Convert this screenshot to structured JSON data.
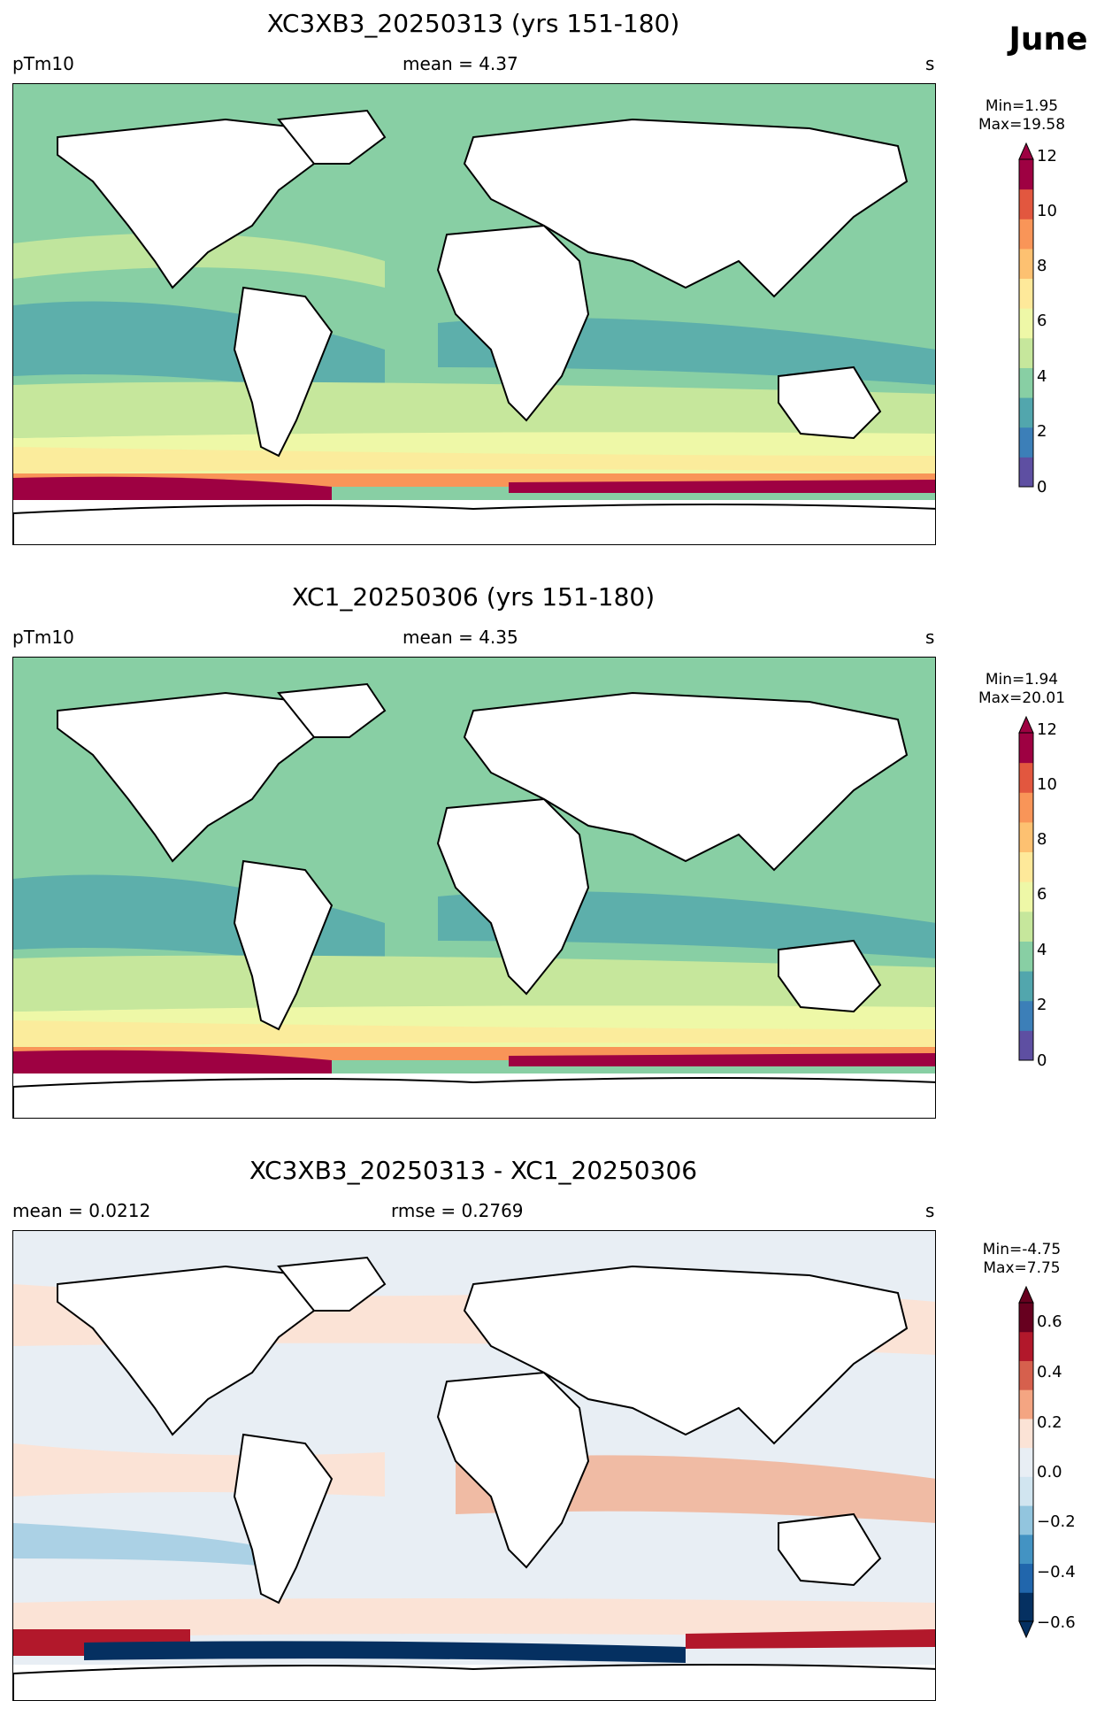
{
  "month": "June",
  "panels": [
    {
      "title": "XC3XB3_20250313 (yrs 151-180)",
      "left_label": "pTm10",
      "center_label": "mean = 4.37",
      "right_label": "s",
      "min_label": "Min=1.95",
      "max_label": "Max=19.58",
      "colorbar": {
        "ticks": [
          "0",
          "2",
          "4",
          "6",
          "8",
          "10",
          "12"
        ],
        "colors": [
          "#5e4fa2",
          "#3c7fb8",
          "#52a6ad",
          "#88cfa4",
          "#c6e79c",
          "#eef8a7",
          "#fee99a",
          "#fdc171",
          "#f99558",
          "#e2573f",
          "#9e0142"
        ]
      }
    },
    {
      "title": "XC1_20250306 (yrs 151-180)",
      "left_label": "pTm10",
      "center_label": "mean = 4.35",
      "right_label": "s",
      "min_label": "Min=1.94",
      "max_label": "Max=20.01",
      "colorbar": {
        "ticks": [
          "0",
          "2",
          "4",
          "6",
          "8",
          "10",
          "12"
        ],
        "colors": [
          "#5e4fa2",
          "#3c7fb8",
          "#52a6ad",
          "#88cfa4",
          "#c6e79c",
          "#eef8a7",
          "#fee99a",
          "#fdc171",
          "#f99558",
          "#e2573f",
          "#9e0142"
        ]
      }
    },
    {
      "title": "XC3XB3_20250313 - XC1_20250306",
      "left_label": "mean = 0.0212",
      "center_label": "rmse = 0.2769",
      "right_label": "s",
      "min_label": "Min=-4.75",
      "max_label": "Max=7.75",
      "colorbar": {
        "ticks": [
          "0.6",
          "0.4",
          "0.2",
          "0.0",
          "−0.2",
          "−0.4",
          "−0.6"
        ],
        "colors": [
          "#053061",
          "#2166ac",
          "#4393c3",
          "#92c5de",
          "#d1e5f0",
          "#e8eef4",
          "#fbe3d6",
          "#f4a582",
          "#d6604d",
          "#b2182b",
          "#67001f"
        ]
      }
    }
  ]
}
